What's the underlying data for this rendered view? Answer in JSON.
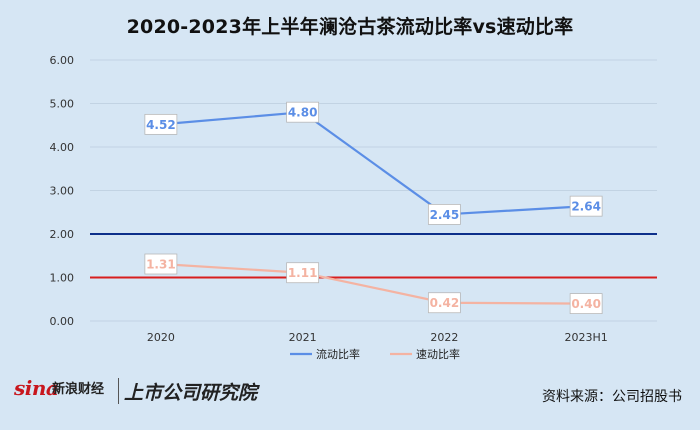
{
  "page": {
    "title": "2020-2023年上半年澜沧古茶流动比率vs速动比率",
    "source": "资料来源：公司招股书",
    "logo_left": "新浪财经",
    "logo_left_brand": "sina",
    "logo_right": "上市公司研究院"
  },
  "colors": {
    "background": "#d6e6f4",
    "current_ratio": "#5b8ee6",
    "quick_ratio": "#f4b3a2",
    "line_2": "#0d2f8a",
    "line_1": "#d81e1e",
    "grid": "#c2d3e3"
  },
  "chart_data": {
    "type": "line",
    "title": "2020-2023年上半年澜沧古茶流动比率vs速动比率",
    "categories": [
      "2020",
      "2021",
      "2022",
      "2023H1"
    ],
    "series": [
      {
        "name": "流动比率",
        "values": [
          4.52,
          4.8,
          2.45,
          2.64
        ],
        "labels": [
          "4.52",
          "4.80",
          "2.45",
          "2.64"
        ]
      },
      {
        "name": "速动比率",
        "values": [
          1.31,
          1.11,
          0.42,
          0.4
        ],
        "labels": [
          "1.31",
          "1.11",
          "0.42",
          "0.40"
        ]
      }
    ],
    "reference_lines": [
      {
        "value": 2.0,
        "color": "#0d2f8a"
      },
      {
        "value": 1.0,
        "color": "#d81e1e"
      }
    ],
    "ylim": [
      0,
      6
    ],
    "y_ticks": [
      "0.00",
      "1.00",
      "2.00",
      "3.00",
      "4.00",
      "5.00",
      "6.00"
    ],
    "grid": true,
    "legend_position": "bottom"
  }
}
